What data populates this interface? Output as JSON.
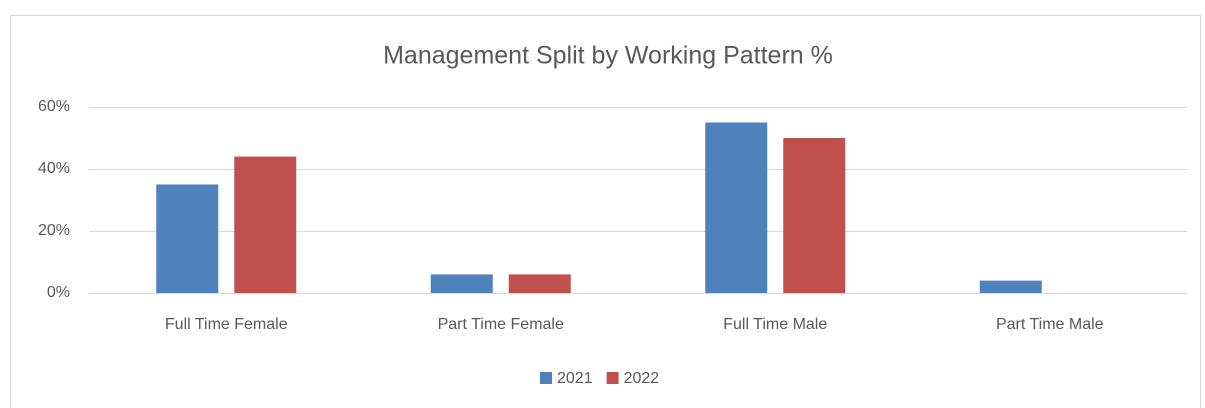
{
  "chart_data": {
    "type": "bar",
    "title": "Management Split by Working Pattern %",
    "categories": [
      "Full Time Female",
      "Part Time Female",
      "Full Time Male",
      "Part Time Male"
    ],
    "series": [
      {
        "name": "2021",
        "color": "#4f81bd",
        "values": [
          35,
          6,
          55,
          4
        ]
      },
      {
        "name": "2022",
        "color": "#c0504d",
        "values": [
          44,
          6,
          50,
          0
        ]
      }
    ],
    "ylim": [
      0,
      60
    ],
    "yticks": [
      {
        "value": 0,
        "label": "0%"
      },
      {
        "value": 20,
        "label": "20%"
      },
      {
        "value": 40,
        "label": "40%"
      },
      {
        "value": 60,
        "label": "60%"
      }
    ],
    "grid": true,
    "legend": "bottom"
  }
}
